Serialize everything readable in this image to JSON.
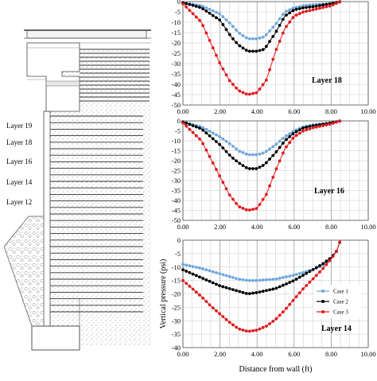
{
  "diagram": {
    "layer_labels": [
      "Layer 19",
      "Layer 18",
      "Layer 16",
      "Layer 14",
      "Layer 12"
    ]
  },
  "colors": {
    "case1": "#6fa8dc",
    "case2": "#000000",
    "case3": "#e0191c",
    "grid": "#c8c8c8"
  },
  "chart_data": [
    {
      "type": "line",
      "title": "Layer 18",
      "xlim": [
        0,
        10
      ],
      "ylim": [
        -50,
        0
      ],
      "x_ticks": [
        "0.00",
        "2.00",
        "4.00",
        "6.00",
        "8.00",
        "10.00"
      ],
      "y_ticks": [
        "0",
        "-5",
        "-10",
        "-15",
        "-20",
        "-25",
        "-30",
        "-35",
        "-40",
        "-45",
        "-50"
      ],
      "grid": true,
      "series": [
        {
          "color_key": "case1",
          "x": [
            0,
            1.0,
            2.0,
            2.6,
            3.0,
            3.5,
            4.0,
            4.4,
            5.0,
            5.5,
            6.0,
            6.5,
            7.0,
            8.0,
            8.5
          ],
          "y": [
            -0.5,
            -2,
            -6,
            -11,
            -15,
            -18,
            -18,
            -17,
            -11,
            -5,
            -3,
            -2,
            -1.5,
            -1,
            0
          ]
        },
        {
          "color_key": "case2",
          "x": [
            0,
            1.0,
            2.0,
            2.6,
            3.0,
            3.5,
            4.0,
            4.4,
            5.0,
            5.5,
            6.0,
            6.5,
            7.0,
            8.0,
            8.5
          ],
          "y": [
            -0.5,
            -3,
            -9,
            -17,
            -21,
            -24,
            -24,
            -23,
            -15,
            -7,
            -4,
            -3,
            -2.5,
            -1,
            0
          ]
        },
        {
          "color_key": "case3",
          "x": [
            0,
            1.0,
            1.5,
            2.0,
            2.5,
            3.0,
            3.5,
            4.0,
            4.5,
            5.0,
            5.5,
            6.0,
            6.5,
            7.0,
            8.0,
            8.5
          ],
          "y": [
            -1,
            -10,
            -20,
            -30,
            -38,
            -43,
            -45,
            -44,
            -38,
            -24,
            -13,
            -7,
            -5,
            -4,
            -2,
            0
          ]
        }
      ]
    },
    {
      "type": "line",
      "title": "Layer 16",
      "xlim": [
        0,
        10
      ],
      "ylim": [
        -50,
        0
      ],
      "x_ticks": [
        "0.00",
        "2.00",
        "4.00",
        "6.00",
        "8.00",
        "10.00"
      ],
      "y_ticks": [
        "0",
        "-5",
        "-10",
        "-15",
        "-20",
        "-25",
        "-30",
        "-35",
        "-40",
        "-45",
        "-50"
      ],
      "grid": true,
      "series": [
        {
          "color_key": "case1",
          "x": [
            0,
            1.0,
            2.0,
            2.6,
            3.0,
            3.5,
            4.0,
            4.4,
            5.0,
            5.5,
            6.0,
            6.5,
            7.0,
            8.0,
            8.5
          ],
          "y": [
            -0.5,
            -3,
            -8,
            -12,
            -15,
            -17,
            -17,
            -16,
            -12,
            -8,
            -5,
            -3,
            -2,
            -1,
            0
          ]
        },
        {
          "color_key": "case2",
          "x": [
            0,
            1.0,
            2.0,
            2.6,
            3.0,
            3.5,
            4.0,
            4.4,
            5.0,
            5.5,
            6.0,
            6.5,
            7.0,
            8.0,
            8.5
          ],
          "y": [
            -0.5,
            -4,
            -12,
            -18,
            -21,
            -24,
            -24,
            -22,
            -16,
            -10,
            -6,
            -3.5,
            -2.5,
            -1,
            0
          ]
        },
        {
          "color_key": "case3",
          "x": [
            0,
            1.0,
            1.5,
            2.0,
            2.5,
            3.0,
            3.5,
            4.0,
            4.5,
            5.0,
            5.5,
            6.0,
            6.5,
            7.0,
            8.0,
            8.5
          ],
          "y": [
            -1,
            -10,
            -19,
            -28,
            -37,
            -43,
            -45,
            -44,
            -37,
            -25,
            -14,
            -8,
            -5,
            -3.5,
            -1.5,
            0
          ]
        }
      ]
    },
    {
      "type": "line",
      "title": "Layer 14",
      "xlabel": "Distance from wall (ft)",
      "ylabel": "Vertical pressure (psi)",
      "xlim": [
        0,
        10
      ],
      "ylim": [
        -40,
        0
      ],
      "x_ticks": [
        "0.00",
        "2.00",
        "4.00",
        "6.00",
        "8.00",
        "10.00"
      ],
      "y_ticks": [
        "0",
        "-5",
        "-10",
        "-15",
        "-20",
        "-25",
        "-30",
        "-35",
        "-40"
      ],
      "grid": true,
      "legend": {
        "position": "right",
        "entries": [
          "Case 1",
          "Case 2",
          "Case 3"
        ]
      },
      "series": [
        {
          "name": "Case 1",
          "color_key": "case1",
          "x": [
            0,
            1.0,
            2.0,
            3.0,
            3.5,
            4.0,
            5.0,
            6.0,
            7.0,
            7.5,
            8.0,
            8.3,
            8.5
          ],
          "y": [
            -9,
            -10.5,
            -12.5,
            -14.5,
            -15,
            -15,
            -14.5,
            -13,
            -11,
            -9.5,
            -7,
            -4,
            0
          ]
        },
        {
          "name": "Case 2",
          "color_key": "case2",
          "x": [
            0,
            1.0,
            2.0,
            3.0,
            3.5,
            4.0,
            5.0,
            6.0,
            7.0,
            7.5,
            8.0,
            8.3,
            8.5
          ],
          "y": [
            -11,
            -14,
            -17,
            -19,
            -20,
            -19.5,
            -18,
            -15,
            -11,
            -9,
            -6.5,
            -4,
            0
          ]
        },
        {
          "name": "Case 3",
          "color_key": "case3",
          "x": [
            0,
            0.5,
            1.0,
            1.5,
            2.0,
            2.5,
            3.0,
            3.5,
            4.0,
            4.5,
            5.0,
            5.5,
            6.0,
            6.5,
            7.0,
            7.5,
            8.0,
            8.3,
            8.5
          ],
          "y": [
            -15,
            -18,
            -21,
            -24.5,
            -27.5,
            -30.5,
            -33,
            -34,
            -33.5,
            -32,
            -29.5,
            -26,
            -22,
            -18,
            -14.5,
            -11,
            -7,
            -4,
            0
          ]
        }
      ]
    }
  ]
}
